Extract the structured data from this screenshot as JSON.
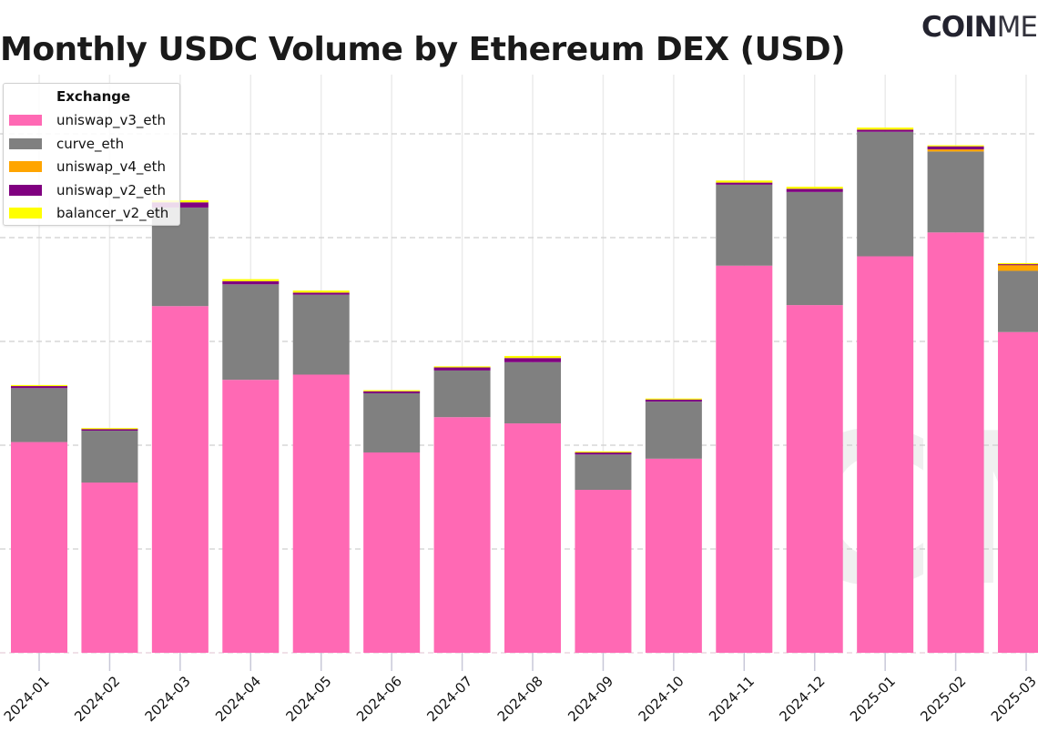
{
  "title": "Monthly USDC Volume by Ethereum DEX (USD)",
  "logo": {
    "bold": "COIN",
    "thin": "ME"
  },
  "watermark": "CM",
  "chart_data": {
    "type": "bar",
    "stacked": true,
    "title": "Monthly USDC Volume by Ethereum DEX (USD)",
    "xlabel": "",
    "ylabel": "",
    "y_units_note": "no y tick labels visible; values in gridline-step units",
    "ylim": [
      0,
      5.3
    ],
    "grid": {
      "y": true,
      "x": true,
      "y_style": "dashed"
    },
    "legend": {
      "title": "Exchange",
      "placement": "top-left"
    },
    "categories": [
      "2024-01",
      "2024-02",
      "2024-03",
      "2024-04",
      "2024-05",
      "2024-06",
      "2024-07",
      "2024-08",
      "2024-09",
      "2024-10",
      "2024-11",
      "2024-12",
      "2025-01",
      "2025-02",
      "2025-03"
    ],
    "series": [
      {
        "name": "uniswap_v3_eth",
        "color": "#ff69b4",
        "values": [
          2.03,
          1.64,
          3.34,
          2.63,
          2.68,
          1.93,
          2.27,
          2.21,
          1.57,
          1.87,
          3.73,
          3.35,
          3.82,
          4.05,
          3.09
        ]
      },
      {
        "name": "curve_eth",
        "color": "#808080",
        "values": [
          0.52,
          0.5,
          0.95,
          0.92,
          0.77,
          0.57,
          0.45,
          0.59,
          0.34,
          0.55,
          0.78,
          1.09,
          1.2,
          0.78,
          0.59
        ]
      },
      {
        "name": "uniswap_v4_eth",
        "color": "#ffa500",
        "values": [
          0,
          0,
          0,
          0,
          0,
          0,
          0,
          0,
          0,
          0,
          0,
          0,
          0,
          0.02,
          0.06
        ]
      },
      {
        "name": "uniswap_v2_eth",
        "color": "#800080",
        "values": [
          0.02,
          0.02,
          0.05,
          0.03,
          0.02,
          0.02,
          0.03,
          0.04,
          0.02,
          0.02,
          0.02,
          0.03,
          0.02,
          0.03,
          0.005
        ]
      },
      {
        "name": "balancer_v2_eth",
        "color": "#ffff00",
        "values": [
          0.01,
          0.005,
          0.02,
          0.02,
          0.02,
          0.01,
          0.01,
          0.02,
          0.01,
          0.01,
          0.02,
          0.02,
          0.02,
          0.01,
          0.01
        ]
      }
    ]
  }
}
